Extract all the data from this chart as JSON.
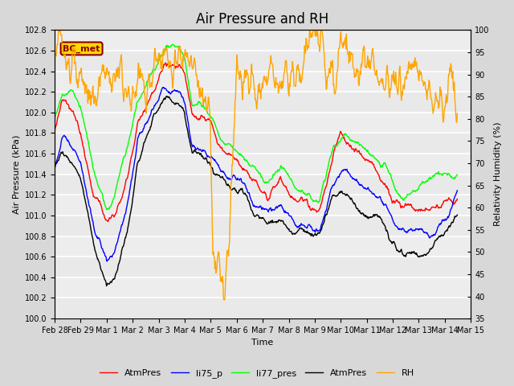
{
  "title": "Air Pressure and RH",
  "xlabel": "Time",
  "ylabel_left": "Air Pressure (kPa)",
  "ylabel_right": "Relativity Humidity (%)",
  "ylim_left": [
    100.0,
    102.8
  ],
  "ylim_right": [
    35,
    100
  ],
  "yticks_left": [
    100.0,
    100.2,
    100.4,
    100.6,
    100.8,
    101.0,
    101.2,
    101.4,
    101.6,
    101.8,
    102.0,
    102.2,
    102.4,
    102.6,
    102.8
  ],
  "yticks_right": [
    35,
    40,
    45,
    50,
    55,
    60,
    65,
    70,
    75,
    80,
    85,
    90,
    95,
    100
  ],
  "legend_labels": [
    "AtmPres",
    "li75_p",
    "li77_pres",
    "AtmPres",
    "RH"
  ],
  "legend_colors": [
    "red",
    "blue",
    "green",
    "black",
    "orange"
  ],
  "line_width": 1.0,
  "bc_met_label": "BC_met",
  "bc_met_color": "#8B0000",
  "bc_met_bg": "#FFD700",
  "bg_color": "#D8D8D8",
  "plot_bg": "#EBEBEB",
  "grid_color": "white",
  "title_fontsize": 12,
  "tick_fontsize": 7,
  "label_fontsize": 8
}
